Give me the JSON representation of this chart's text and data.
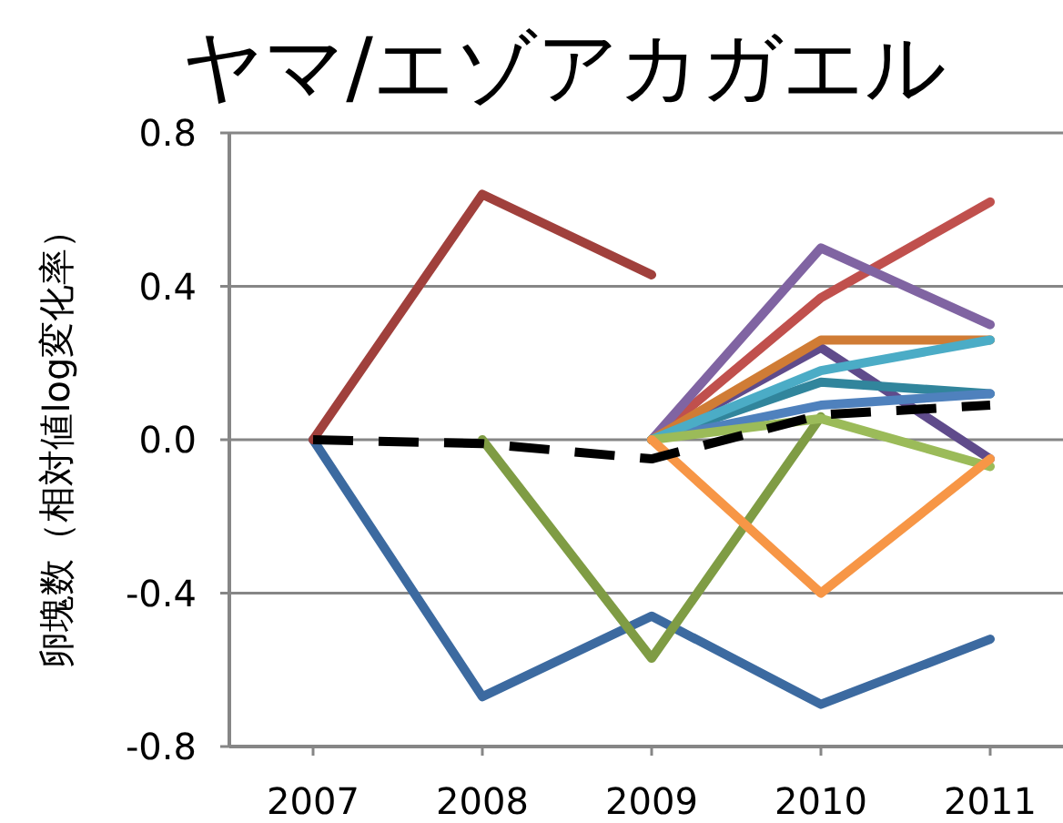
{
  "chart_data": {
    "type": "line",
    "title": "ヤマ/エゾアカガエル",
    "ylabel": "卵塊数（相対値log変化率）",
    "categories": [
      "2007",
      "2008",
      "2009",
      "2010",
      "2011"
    ],
    "ylim": [
      -0.8,
      0.8
    ],
    "yticks": [
      {
        "value": -0.8,
        "label": "-0.8"
      },
      {
        "value": -0.4,
        "label": "-0.4"
      },
      {
        "value": 0,
        "label": "0.0"
      },
      {
        "value": 0.4,
        "label": "0.4"
      },
      {
        "value": 0.8,
        "label": "0.8"
      }
    ],
    "grid": "y",
    "marker": "none",
    "line_style": "solid",
    "series": [
      {
        "color": "#3c6aa0",
        "values": [
          0,
          -0.67,
          -0.46,
          -0.69,
          -0.52
        ]
      },
      {
        "color": "#a0403c",
        "values": [
          0,
          0.64,
          0.43,
          null,
          null
        ]
      },
      {
        "color": "#7f9c44",
        "values": [
          null,
          0,
          -0.57,
          0.06,
          null
        ]
      },
      {
        "color": "#5f4b8b",
        "values": [
          null,
          null,
          0,
          0.24,
          -0.05
        ]
      },
      {
        "color": "#c0504d",
        "values": [
          null,
          null,
          0,
          0.37,
          0.62
        ]
      },
      {
        "color": "#8064a2",
        "values": [
          null,
          null,
          0,
          0.5,
          0.3
        ]
      },
      {
        "color": "#d07c35",
        "values": [
          null,
          null,
          0,
          0.26,
          0.26
        ]
      },
      {
        "color": "#31859c",
        "values": [
          null,
          null,
          0,
          0.15,
          0.12
        ]
      },
      {
        "color": "#4f81bd",
        "values": [
          null,
          null,
          0,
          0.09,
          0.12
        ]
      },
      {
        "color": "#4bacc6",
        "values": [
          null,
          null,
          0,
          0.18,
          0.26
        ]
      },
      {
        "color": "#9bbb59",
        "values": [
          null,
          null,
          0,
          0.055,
          -0.07
        ]
      },
      {
        "color": "#f79646",
        "values": [
          null,
          null,
          0,
          -0.4,
          -0.05
        ]
      },
      {
        "color": "#000000",
        "line_style": "dashed",
        "values": [
          0,
          -0.01,
          -0.05,
          0.065,
          0.09
        ]
      }
    ]
  }
}
